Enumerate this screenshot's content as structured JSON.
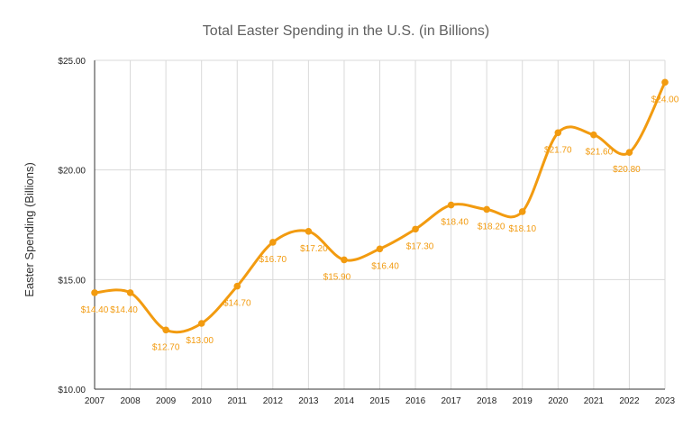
{
  "chart_data": {
    "type": "line",
    "title": "Total Easter Spending in the U.S.  (in Billions)",
    "xlabel": "",
    "ylabel": "Easter Spending  (Billions)",
    "categories": [
      "2007",
      "2008",
      "2009",
      "2010",
      "2011",
      "2012",
      "2013",
      "2014",
      "2015",
      "2016",
      "2017",
      "2018",
      "2019",
      "2020",
      "2021",
      "2022",
      "2023"
    ],
    "series": [
      {
        "values": [
          14.4,
          14.4,
          12.7,
          13.0,
          14.7,
          16.7,
          17.2,
          15.9,
          16.4,
          17.3,
          18.4,
          18.2,
          18.1,
          21.7,
          21.6,
          20.8,
          24.0
        ],
        "data_labels": [
          "$14.40",
          "$14.40",
          "$12.70",
          "$13.00",
          "$14.70",
          "$16.70",
          "$17.20",
          "$15.90",
          "$16.40",
          "$17.30",
          "$18.40",
          "$18.20",
          "$18.10",
          "$21.70",
          "$21.60",
          "$20.80",
          "$24.00"
        ],
        "color": "#f29b10"
      }
    ],
    "ylim": [
      10,
      25
    ],
    "yticks": [
      10,
      15,
      20,
      25
    ],
    "ytick_labels": [
      "$10.00",
      "$15.00",
      "$20.00",
      "$25.00"
    ],
    "grid": true,
    "legend": "none",
    "curve": "smooth"
  }
}
